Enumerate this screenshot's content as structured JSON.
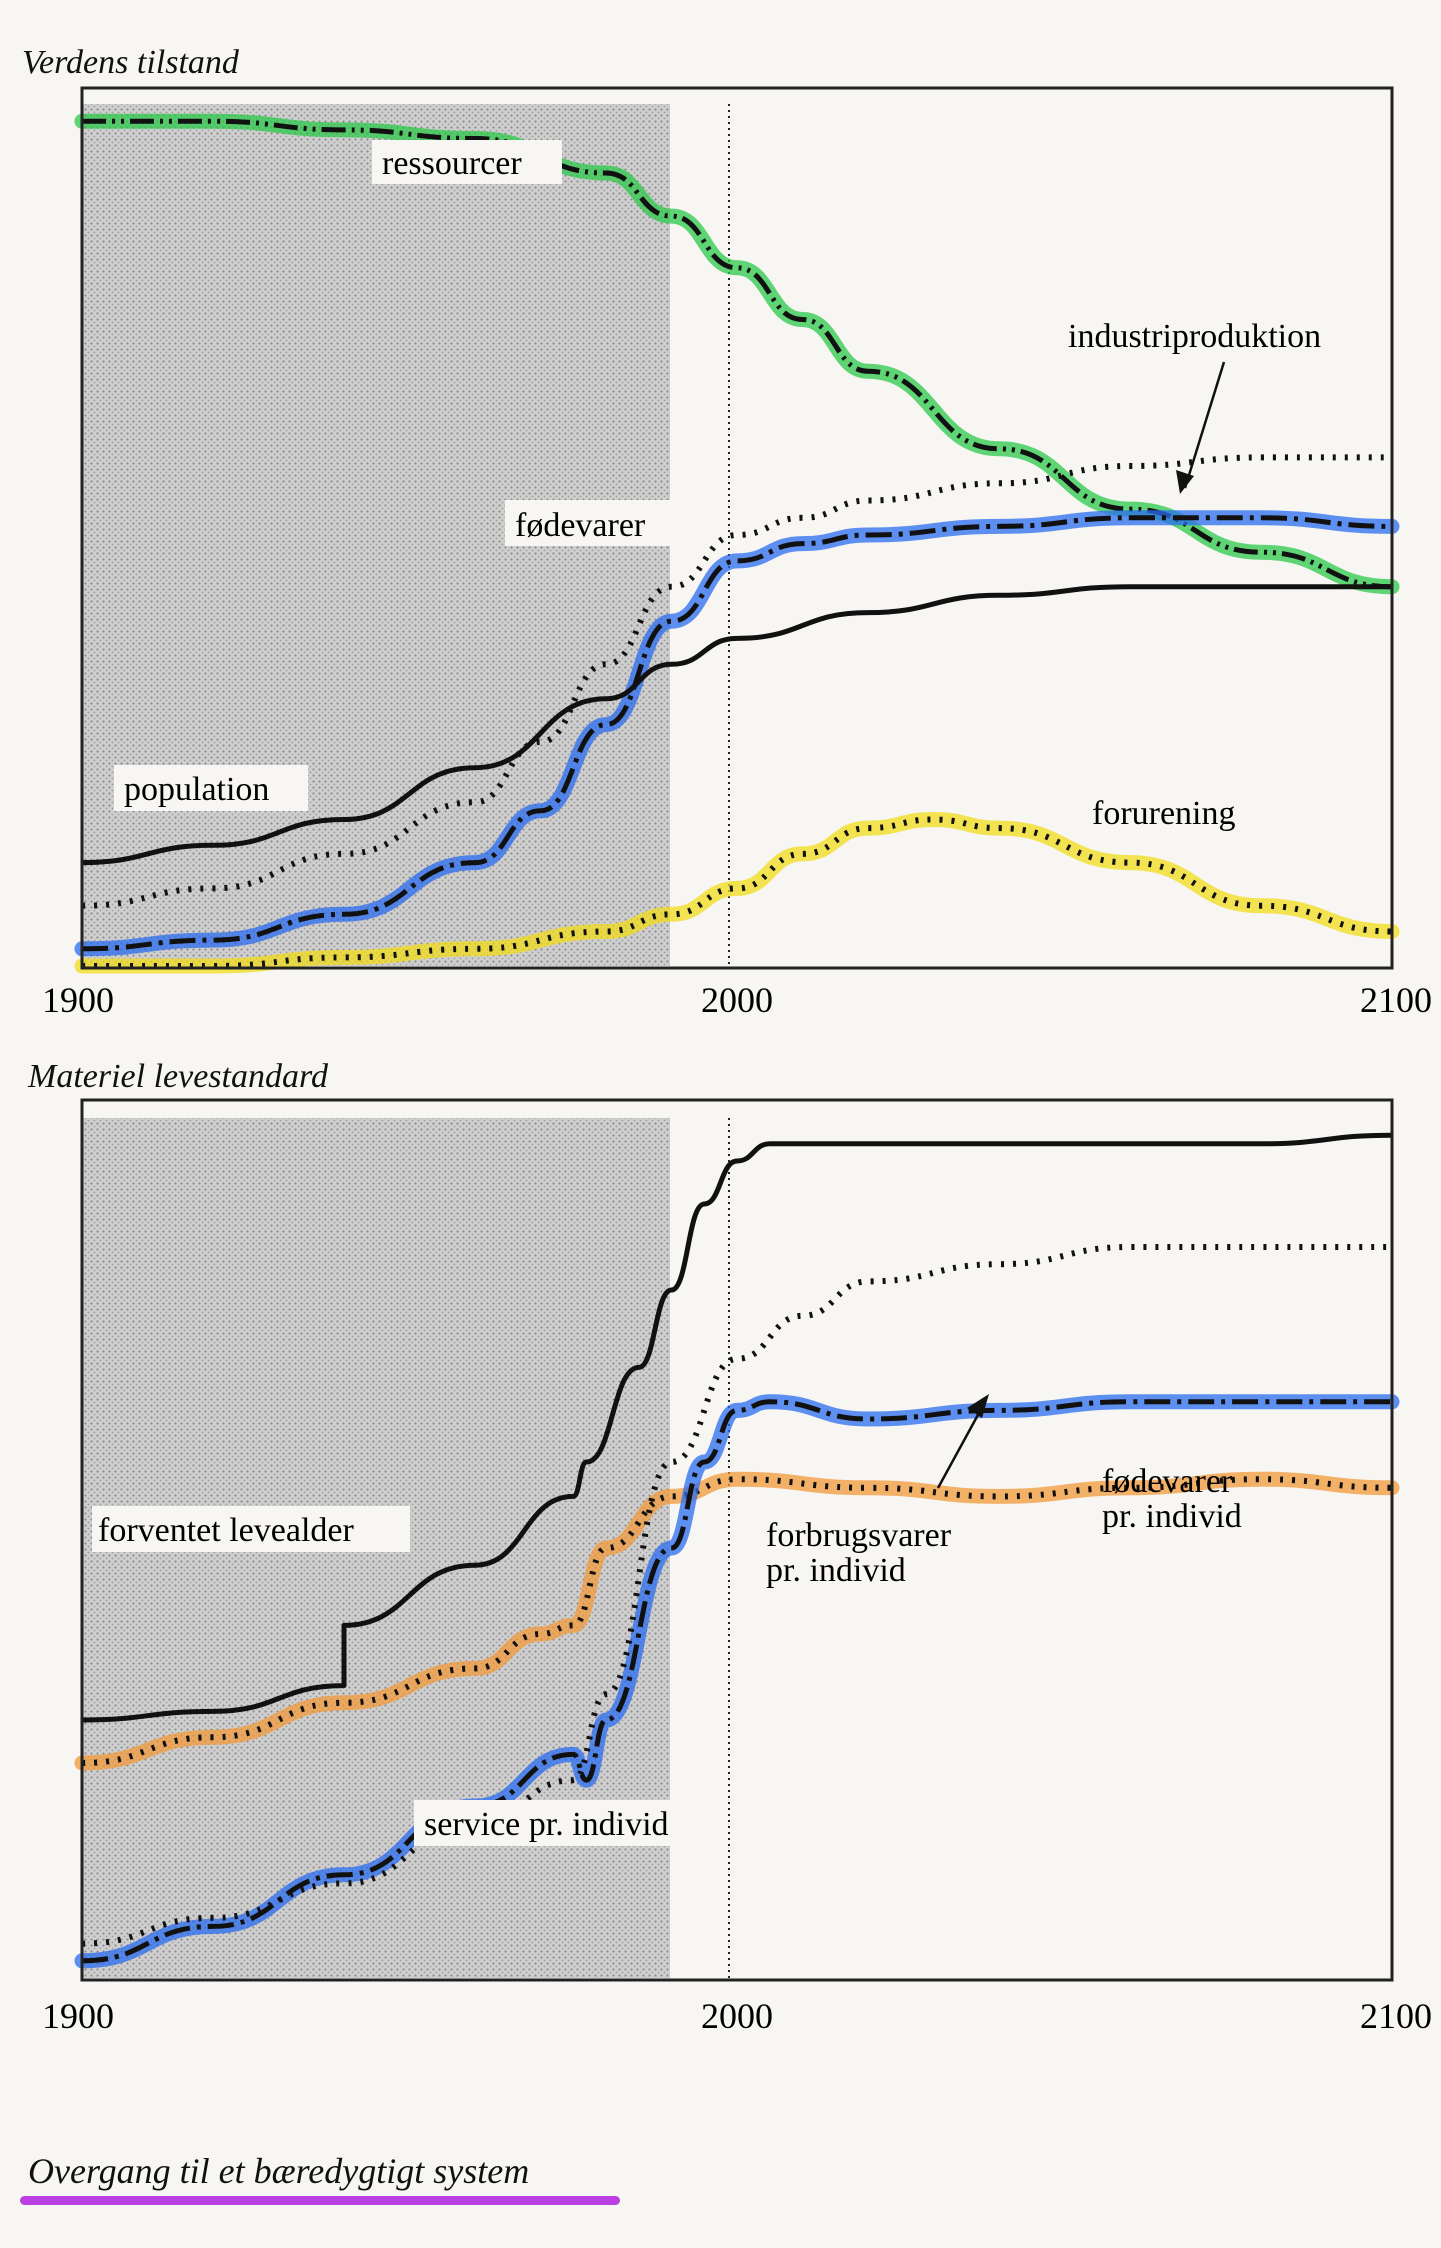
{
  "footer": {
    "title": "Overgang til et bæredygtigt system",
    "highlight_color": "#b020e0"
  },
  "chart_data": [
    {
      "type": "line",
      "title": "Verdens tilstand",
      "xlabel": "",
      "ylabel": "",
      "xlim": [
        1900,
        2100
      ],
      "xticks": [
        "1900",
        "2000",
        "2100"
      ],
      "highlight_region": [
        1900,
        1990
      ],
      "reference_line_x": 2000,
      "grid": false,
      "series": [
        {
          "name": "ressourcer",
          "style": "dash-dot-dot",
          "highlight": "#2bc84a",
          "x": [
            1900,
            1920,
            1940,
            1960,
            1980,
            1990,
            2000,
            2010,
            2020,
            2040,
            2060,
            2080,
            2100
          ],
          "y": [
            0.98,
            0.98,
            0.97,
            0.96,
            0.92,
            0.87,
            0.81,
            0.75,
            0.69,
            0.6,
            0.53,
            0.48,
            0.44
          ]
        },
        {
          "name": "industriproduktion",
          "style": "dash-dot",
          "highlight": "#2a6cf0",
          "x": [
            1900,
            1920,
            1940,
            1960,
            1970,
            1980,
            1990,
            2000,
            2010,
            2020,
            2040,
            2060,
            2080,
            2100
          ],
          "y": [
            0.02,
            0.03,
            0.06,
            0.12,
            0.18,
            0.28,
            0.4,
            0.47,
            0.49,
            0.5,
            0.51,
            0.52,
            0.52,
            0.51
          ]
        },
        {
          "name": "fødevarer",
          "style": "dotted",
          "highlight": null,
          "x": [
            1900,
            1920,
            1940,
            1960,
            1970,
            1980,
            1990,
            2000,
            2010,
            2020,
            2040,
            2060,
            2080,
            2100
          ],
          "y": [
            0.07,
            0.09,
            0.13,
            0.19,
            0.26,
            0.35,
            0.44,
            0.5,
            0.52,
            0.54,
            0.56,
            0.58,
            0.59,
            0.59
          ]
        },
        {
          "name": "population",
          "style": "solid",
          "highlight": null,
          "x": [
            1900,
            1920,
            1940,
            1960,
            1980,
            1990,
            2000,
            2020,
            2040,
            2060,
            2080,
            2100
          ],
          "y": [
            0.12,
            0.14,
            0.17,
            0.23,
            0.31,
            0.35,
            0.38,
            0.41,
            0.43,
            0.44,
            0.44,
            0.44
          ]
        },
        {
          "name": "forurening",
          "style": "dotted",
          "highlight": "#f2dc1a",
          "x": [
            1900,
            1920,
            1940,
            1960,
            1980,
            1990,
            2000,
            2010,
            2020,
            2030,
            2040,
            2060,
            2080,
            2100
          ],
          "y": [
            0.0,
            0.0,
            0.01,
            0.02,
            0.04,
            0.06,
            0.09,
            0.13,
            0.16,
            0.17,
            0.16,
            0.12,
            0.07,
            0.04
          ]
        }
      ]
    },
    {
      "type": "line",
      "title": "Materiel levestandard",
      "xlabel": "",
      "ylabel": "",
      "xlim": [
        1900,
        2100
      ],
      "xticks": [
        "1900",
        "2000",
        "2100"
      ],
      "highlight_region": [
        1900,
        1990
      ],
      "reference_line_x": 2000,
      "grid": false,
      "series": [
        {
          "name": "forventet levealder",
          "style": "solid",
          "highlight": null,
          "x": [
            1900,
            1920,
            1940,
            1940,
            1960,
            1975,
            1977,
            1985,
            1990,
            1995,
            2000,
            2005,
            2020,
            2040,
            2060,
            2080,
            2100
          ],
          "y": [
            0.3,
            0.31,
            0.34,
            0.41,
            0.48,
            0.56,
            0.6,
            0.71,
            0.8,
            0.9,
            0.95,
            0.97,
            0.97,
            0.97,
            0.97,
            0.97,
            0.98
          ]
        },
        {
          "name": "fødevarer pr. individ",
          "style": "dotted",
          "highlight": "#f29a3a",
          "x": [
            1900,
            1920,
            1940,
            1960,
            1970,
            1975,
            1980,
            1990,
            2000,
            2020,
            2040,
            2060,
            2080,
            2100
          ],
          "y": [
            0.25,
            0.28,
            0.32,
            0.36,
            0.4,
            0.41,
            0.5,
            0.56,
            0.58,
            0.57,
            0.56,
            0.57,
            0.58,
            0.57
          ]
        },
        {
          "name": "forbrugsvarer pr. individ",
          "style": "dash-dot",
          "highlight": "#2a6cf0",
          "x": [
            1900,
            1920,
            1940,
            1960,
            1975,
            1977,
            1980,
            1990,
            1995,
            2000,
            2005,
            2020,
            2040,
            2060,
            2080,
            2100
          ],
          "y": [
            0.02,
            0.06,
            0.12,
            0.2,
            0.26,
            0.23,
            0.3,
            0.5,
            0.6,
            0.66,
            0.67,
            0.65,
            0.66,
            0.67,
            0.67,
            0.67
          ]
        },
        {
          "name": "service pr. individ",
          "style": "dotted",
          "highlight": null,
          "x": [
            1900,
            1920,
            1940,
            1960,
            1975,
            1980,
            1990,
            2000,
            2010,
            2020,
            2040,
            2060,
            2080,
            2100
          ],
          "y": [
            0.04,
            0.07,
            0.11,
            0.18,
            0.23,
            0.33,
            0.6,
            0.72,
            0.77,
            0.81,
            0.83,
            0.85,
            0.85,
            0.85
          ]
        }
      ]
    }
  ],
  "labels": {
    "top": {
      "caption": "Verdens tilstand",
      "ressourcer": "ressourcer",
      "industriproduktion": "industriproduktion",
      "fodevarer": "fødevarer",
      "population": "population",
      "forurening": "forurening"
    },
    "bottom": {
      "caption": "Materiel levestandard",
      "forventet_levealder": "forventet levealder",
      "forbrugsvarer_1": "forbrugsvarer",
      "forbrugsvarer_2": "pr. individ",
      "fodevarer_1": "fødevarer",
      "fodevarer_2": "pr. individ",
      "service": "service pr. individ"
    }
  }
}
